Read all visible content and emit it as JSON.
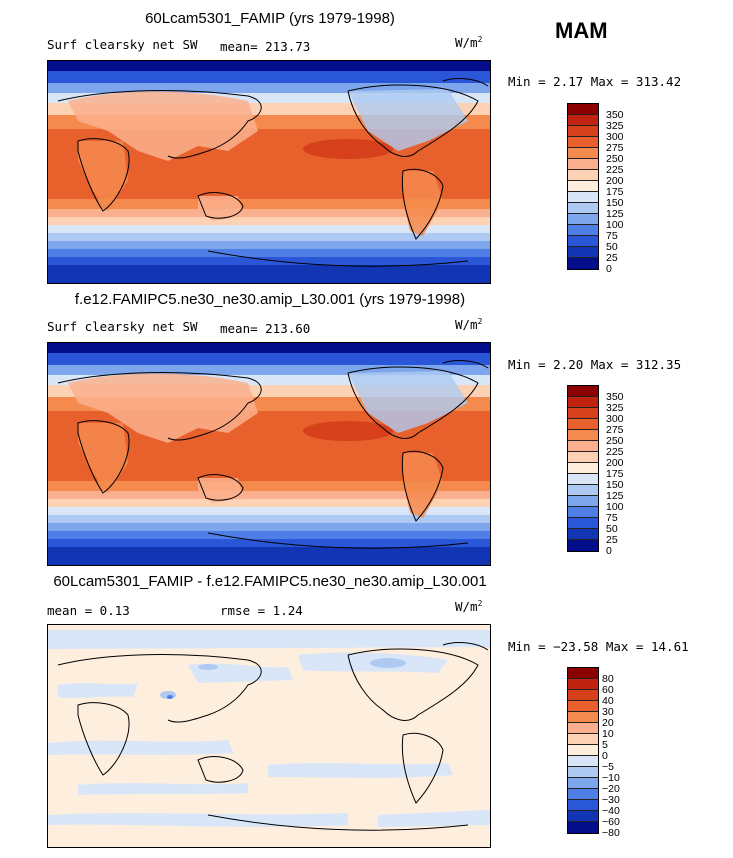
{
  "header": {
    "season": "MAM"
  },
  "panels": [
    {
      "title": "60Lcam5301_FAMIP (yrs 1979-1998)",
      "left_label": "Surf clearsky net SW",
      "mid_label": "mean= 213.73",
      "units": "W/m",
      "units_sup": "2",
      "minmax": "Min =    2.17 Max = 313.42",
      "colorbar": {
        "levels": [
          "350",
          "325",
          "300",
          "275",
          "250",
          "225",
          "200",
          "175",
          "150",
          "125",
          "100",
          "75",
          "50",
          "25",
          "0"
        ],
        "colors": [
          "#8b0000",
          "#c0230f",
          "#d6401a",
          "#e8602b",
          "#f58a4e",
          "#fab08e",
          "#fcd1b4",
          "#fdeede",
          "#d8e6f8",
          "#aecaf2",
          "#7ea6ec",
          "#4f7fe6",
          "#2a56d8",
          "#1235b4",
          "#050e8a"
        ]
      }
    },
    {
      "title": "f.e12.FAMIPC5.ne30_ne30.amip_L30.001 (yrs 1979-1998)",
      "left_label": "Surf clearsky net SW",
      "mid_label": "mean= 213.60",
      "units": "W/m",
      "units_sup": "2",
      "minmax": "Min =    2.20 Max = 312.35",
      "colorbar": {
        "levels": [
          "350",
          "325",
          "300",
          "275",
          "250",
          "225",
          "200",
          "175",
          "150",
          "125",
          "100",
          "75",
          "50",
          "25",
          "0"
        ],
        "colors": [
          "#8b0000",
          "#c0230f",
          "#d6401a",
          "#e8602b",
          "#f58a4e",
          "#fab08e",
          "#fcd1b4",
          "#fdeede",
          "#d8e6f8",
          "#aecaf2",
          "#7ea6ec",
          "#4f7fe6",
          "#2a56d8",
          "#1235b4",
          "#050e8a"
        ]
      }
    },
    {
      "title": "60Lcam5301_FAMIP - f.e12.FAMIPC5.ne30_ne30.amip_L30.001",
      "left_label": "mean =    0.13",
      "mid_label": "rmse =    1.24",
      "units": "W/m",
      "units_sup": "2",
      "minmax": "Min = −23.58 Max =  14.61",
      "colorbar": {
        "levels": [
          "80",
          "60",
          "40",
          "30",
          "20",
          "10",
          "5",
          "0",
          "−5",
          "−10",
          "−20",
          "−30",
          "−40",
          "−60",
          "−80"
        ],
        "colors": [
          "#8b0000",
          "#c0230f",
          "#d6401a",
          "#e8602b",
          "#f58a4e",
          "#fab08e",
          "#fcd1b4",
          "#fdeede",
          "#d8e6f8",
          "#aecaf2",
          "#7ea6ec",
          "#4f7fe6",
          "#2a56d8",
          "#1235b4",
          "#050e8a"
        ]
      }
    }
  ],
  "chart_data": [
    {
      "type": "heatmap",
      "title": "60Lcam5301_FAMIP (yrs 1979-1998)",
      "variable": "Surf clearsky net SW",
      "units": "W/m2",
      "mean": 213.73,
      "min": 2.17,
      "max": 313.42,
      "contour_levels": [
        0,
        25,
        50,
        75,
        100,
        125,
        150,
        175,
        200,
        225,
        250,
        275,
        300,
        325,
        350
      ]
    },
    {
      "type": "heatmap",
      "title": "f.e12.FAMIPC5.ne30_ne30.amip_L30.001 (yrs 1979-1998)",
      "variable": "Surf clearsky net SW",
      "units": "W/m2",
      "mean": 213.6,
      "min": 2.2,
      "max": 312.35,
      "contour_levels": [
        0,
        25,
        50,
        75,
        100,
        125,
        150,
        175,
        200,
        225,
        250,
        275,
        300,
        325,
        350
      ]
    },
    {
      "type": "heatmap",
      "title": "60Lcam5301_FAMIP - f.e12.FAMIPC5.ne30_ne30.amip_L30.001",
      "units": "W/m2",
      "mean": 0.13,
      "rmse": 1.24,
      "min": -23.58,
      "max": 14.61,
      "contour_levels": [
        -80,
        -60,
        -40,
        -30,
        -20,
        -10,
        -5,
        0,
        5,
        10,
        20,
        30,
        40,
        60,
        80
      ]
    }
  ]
}
